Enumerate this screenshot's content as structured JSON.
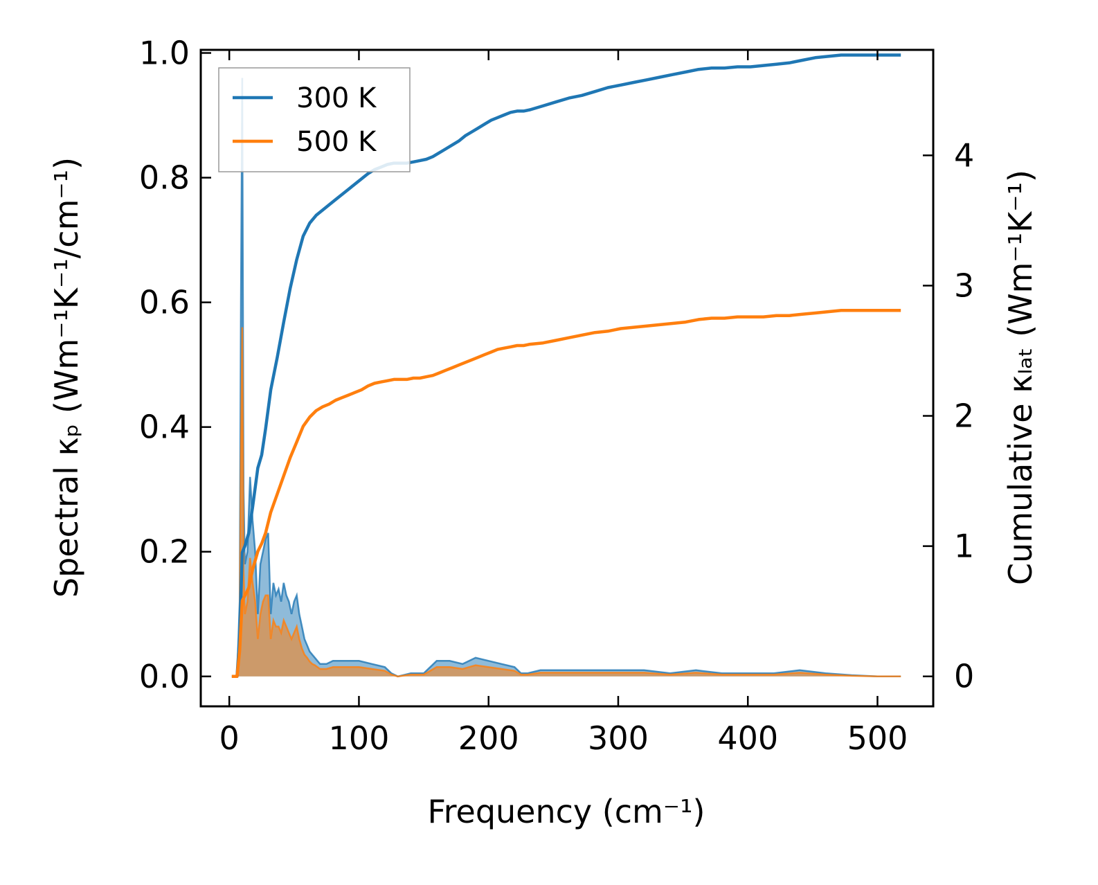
{
  "chart_data": {
    "type": "line",
    "xlabel": "Frequency (cm⁻¹)",
    "ylabel_left": "Spectral κₚ (Wm⁻¹K⁻¹/cm⁻¹)",
    "ylabel_right": "Cumulative κₗₐₜ (Wm⁻¹K⁻¹)",
    "xlim": [
      -22,
      543
    ],
    "ylim_left": [
      -0.048,
      1.005
    ],
    "ylim_right": [
      -0.23,
      4.81
    ],
    "xticks": [
      0,
      100,
      200,
      300,
      400,
      500
    ],
    "yticks_left": [
      0.0,
      0.2,
      0.4,
      0.6,
      0.8,
      1.0
    ],
    "yticks_right": [
      0,
      1,
      2,
      3,
      4
    ],
    "xtick_labels": [
      "0",
      "100",
      "200",
      "300",
      "400",
      "500"
    ],
    "ytick_labels_left": [
      "0.0",
      "0.2",
      "0.4",
      "0.6",
      "0.8",
      "1.0"
    ],
    "ytick_labels_right": [
      "0",
      "1",
      "2",
      "3",
      "4"
    ],
    "legend_position": "top-left",
    "legend": [
      "300 K",
      "500 K"
    ],
    "colors": {
      "300 K": "#1f77b4",
      "500 K": "#ff7f0e"
    },
    "series_cumulative": [
      {
        "name": "300 K",
        "x": [
          2,
          6,
          8,
          10,
          12,
          15,
          18,
          22,
          25,
          28,
          32,
          37,
          42,
          47,
          52,
          57,
          62,
          67,
          72,
          77,
          82,
          87,
          92,
          97,
          102,
          107,
          112,
          117,
          122,
          127,
          132,
          137,
          142,
          147,
          152,
          157,
          162,
          167,
          172,
          177,
          182,
          187,
          192,
          197,
          202,
          207,
          212,
          217,
          222,
          227,
          232,
          242,
          252,
          262,
          272,
          282,
          292,
          302,
          312,
          322,
          332,
          342,
          352,
          362,
          372,
          382,
          392,
          402,
          412,
          422,
          432,
          442,
          452,
          462,
          472,
          482,
          492,
          502,
          512,
          518
        ],
        "y": [
          0,
          0,
          0.3,
          0.95,
          1.0,
          1.1,
          1.3,
          1.6,
          1.7,
          1.9,
          2.2,
          2.45,
          2.72,
          2.98,
          3.2,
          3.38,
          3.48,
          3.54,
          3.58,
          3.62,
          3.66,
          3.7,
          3.74,
          3.78,
          3.82,
          3.86,
          3.89,
          3.91,
          3.93,
          3.94,
          3.94,
          3.94,
          3.95,
          3.96,
          3.97,
          3.99,
          4.02,
          4.05,
          4.08,
          4.11,
          4.15,
          4.18,
          4.21,
          4.24,
          4.27,
          4.29,
          4.31,
          4.33,
          4.34,
          4.34,
          4.35,
          4.38,
          4.41,
          4.44,
          4.46,
          4.49,
          4.52,
          4.54,
          4.56,
          4.58,
          4.6,
          4.62,
          4.64,
          4.66,
          4.67,
          4.67,
          4.68,
          4.68,
          4.69,
          4.7,
          4.71,
          4.73,
          4.75,
          4.76,
          4.77,
          4.77,
          4.77,
          4.77,
          4.77,
          4.77
        ]
      },
      {
        "name": "500 K",
        "x": [
          2,
          6,
          8,
          10,
          12,
          15,
          18,
          22,
          25,
          28,
          32,
          37,
          42,
          47,
          52,
          57,
          62,
          67,
          72,
          77,
          82,
          87,
          92,
          97,
          102,
          107,
          112,
          117,
          122,
          127,
          132,
          137,
          142,
          147,
          152,
          157,
          162,
          167,
          172,
          177,
          182,
          187,
          192,
          197,
          202,
          207,
          212,
          217,
          222,
          227,
          232,
          242,
          252,
          262,
          272,
          282,
          292,
          302,
          312,
          322,
          332,
          342,
          352,
          362,
          372,
          382,
          392,
          402,
          412,
          422,
          432,
          442,
          452,
          462,
          472,
          482,
          492,
          502,
          512,
          518
        ],
        "y": [
          0,
          0,
          0.2,
          0.58,
          0.62,
          0.68,
          0.82,
          0.96,
          1.02,
          1.1,
          1.26,
          1.4,
          1.54,
          1.68,
          1.8,
          1.92,
          1.99,
          2.04,
          2.07,
          2.09,
          2.12,
          2.14,
          2.16,
          2.18,
          2.2,
          2.23,
          2.25,
          2.26,
          2.27,
          2.28,
          2.28,
          2.28,
          2.29,
          2.29,
          2.3,
          2.31,
          2.33,
          2.35,
          2.37,
          2.39,
          2.41,
          2.43,
          2.45,
          2.47,
          2.49,
          2.51,
          2.52,
          2.53,
          2.54,
          2.54,
          2.55,
          2.56,
          2.58,
          2.6,
          2.62,
          2.64,
          2.65,
          2.67,
          2.68,
          2.69,
          2.7,
          2.71,
          2.72,
          2.74,
          2.75,
          2.75,
          2.76,
          2.76,
          2.76,
          2.77,
          2.77,
          2.78,
          2.79,
          2.8,
          2.81,
          2.81,
          2.81,
          2.81,
          2.81,
          2.81
        ]
      }
    ],
    "series_spectral": [
      {
        "name": "300 K",
        "x": [
          2,
          6,
          8,
          9,
          10,
          11,
          12,
          14,
          16,
          18,
          20,
          22,
          24,
          26,
          28,
          30,
          32,
          34,
          36,
          38,
          40,
          42,
          44,
          46,
          48,
          50,
          52,
          54,
          56,
          58,
          60,
          62,
          64,
          66,
          68,
          70,
          75,
          80,
          90,
          100,
          110,
          120,
          125,
          130,
          140,
          150,
          160,
          170,
          180,
          190,
          200,
          210,
          220,
          225,
          230,
          240,
          260,
          280,
          300,
          320,
          340,
          360,
          380,
          400,
          420,
          440,
          460,
          480,
          500,
          518
        ],
        "y": [
          0,
          0,
          0.12,
          0.6,
          0.96,
          0.3,
          0.18,
          0.2,
          0.32,
          0.25,
          0.2,
          0.1,
          0.18,
          0.2,
          0.22,
          0.23,
          0.1,
          0.15,
          0.13,
          0.14,
          0.12,
          0.15,
          0.13,
          0.12,
          0.1,
          0.12,
          0.13,
          0.1,
          0.08,
          0.06,
          0.05,
          0.04,
          0.035,
          0.03,
          0.025,
          0.02,
          0.02,
          0.025,
          0.025,
          0.025,
          0.02,
          0.015,
          0.005,
          0.0,
          0.005,
          0.005,
          0.025,
          0.025,
          0.02,
          0.03,
          0.025,
          0.02,
          0.015,
          0.005,
          0.005,
          0.01,
          0.01,
          0.01,
          0.01,
          0.01,
          0.005,
          0.01,
          0.005,
          0.005,
          0.005,
          0.01,
          0.005,
          0.002,
          0.0,
          0.0
        ]
      },
      {
        "name": "500 K",
        "x": [
          2,
          6,
          8,
          9,
          10,
          11,
          12,
          14,
          16,
          18,
          20,
          22,
          24,
          26,
          28,
          30,
          32,
          34,
          36,
          38,
          40,
          42,
          44,
          46,
          48,
          50,
          52,
          54,
          56,
          58,
          60,
          62,
          64,
          66,
          68,
          70,
          75,
          80,
          90,
          100,
          110,
          120,
          125,
          130,
          140,
          150,
          160,
          170,
          180,
          190,
          200,
          210,
          220,
          225,
          230,
          240,
          260,
          280,
          300,
          320,
          340,
          360,
          380,
          400,
          420,
          440,
          460,
          480,
          500,
          518
        ],
        "y": [
          0,
          0,
          0.07,
          0.35,
          0.56,
          0.17,
          0.1,
          0.12,
          0.19,
          0.15,
          0.12,
          0.06,
          0.1,
          0.12,
          0.13,
          0.13,
          0.06,
          0.09,
          0.08,
          0.08,
          0.07,
          0.09,
          0.08,
          0.07,
          0.06,
          0.07,
          0.08,
          0.06,
          0.045,
          0.035,
          0.03,
          0.024,
          0.02,
          0.018,
          0.015,
          0.012,
          0.012,
          0.015,
          0.015,
          0.015,
          0.012,
          0.009,
          0.003,
          0.0,
          0.003,
          0.003,
          0.015,
          0.015,
          0.012,
          0.018,
          0.015,
          0.012,
          0.009,
          0.003,
          0.003,
          0.006,
          0.006,
          0.006,
          0.006,
          0.006,
          0.003,
          0.006,
          0.003,
          0.003,
          0.003,
          0.006,
          0.003,
          0.001,
          0.0,
          0.0
        ]
      }
    ]
  }
}
